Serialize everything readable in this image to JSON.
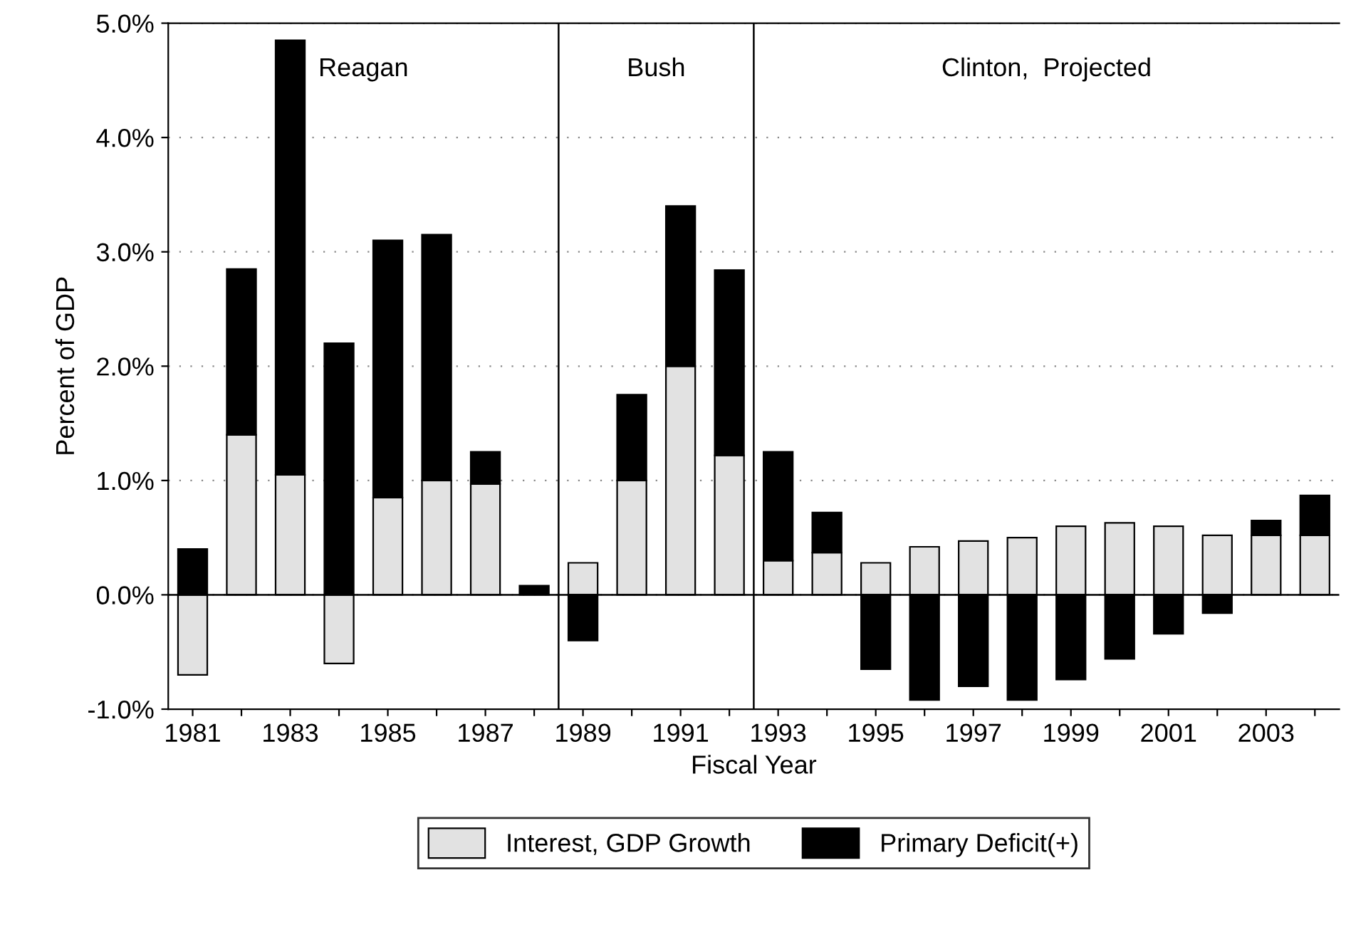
{
  "chart_data": {
    "type": "bar",
    "stacked": true,
    "xlabel": "Fiscal Year",
    "ylabel": "Percent of GDP",
    "x": [
      1981,
      1982,
      1983,
      1984,
      1985,
      1986,
      1987,
      1988,
      1989,
      1990,
      1991,
      1992,
      1993,
      1994,
      1995,
      1996,
      1997,
      1998,
      1999,
      2000,
      2001,
      2002,
      2003,
      2004
    ],
    "series": [
      {
        "name": "Interest, GDP Growth",
        "color": "#e2e2e2",
        "values": [
          -0.7,
          1.4,
          1.05,
          -0.6,
          0.85,
          1.0,
          0.97,
          null,
          0.28,
          1.0,
          2.0,
          1.22,
          0.3,
          0.37,
          0.28,
          0.42,
          0.47,
          0.5,
          0.6,
          0.63,
          0.6,
          0.52,
          0.52,
          0.52
        ]
      },
      {
        "name": "Primary Deficit(+)",
        "color": "#000000",
        "values": [
          0.4,
          1.45,
          3.8,
          2.2,
          2.25,
          2.15,
          0.28,
          0.08,
          -0.4,
          0.75,
          1.4,
          1.62,
          0.95,
          0.35,
          -0.65,
          -0.92,
          -0.8,
          -0.92,
          -0.74,
          -0.56,
          -0.34,
          -0.16,
          0.13,
          0.35
        ]
      }
    ],
    "xlim": [
      1980.5,
      2004.5
    ],
    "xticks": [
      1981,
      {
        "value": 1982,
        "label": null
      },
      1983,
      {
        "value": 1984,
        "label": null
      },
      1985,
      {
        "value": 1986,
        "label": null
      },
      1987,
      {
        "value": 1988,
        "label": null
      },
      1989,
      {
        "value": 1990,
        "label": null
      },
      1991,
      {
        "value": 1992,
        "label": null
      },
      1993,
      {
        "value": 1994,
        "label": null
      },
      1995,
      {
        "value": 1996,
        "label": null
      },
      1997,
      {
        "value": 1998,
        "label": null
      },
      1999,
      {
        "value": 2000,
        "label": null
      },
      2001,
      {
        "value": 2002,
        "label": null
      },
      2003,
      {
        "value": 2004,
        "label": null
      }
    ],
    "ylim": [
      -1.0,
      5.0
    ],
    "yticks": [
      {
        "value": -1,
        "label": "-1.0%"
      },
      {
        "value": 0,
        "label": "0.0%"
      },
      {
        "value": 1,
        "label": "1.0%"
      },
      {
        "value": 2,
        "label": "2.0%"
      },
      {
        "value": 3,
        "label": "3.0%"
      },
      {
        "value": 4,
        "label": "4.0%"
      },
      {
        "value": 5,
        "label": "5.0%"
      }
    ],
    "ref_lines": [
      {
        "axis": "y",
        "value": 0,
        "color": "#000000"
      },
      {
        "axis": "x",
        "value": 1988.5,
        "color": "#000000"
      },
      {
        "axis": "x",
        "value": 1992.5,
        "color": "#000000"
      }
    ],
    "annotations": [
      "Reagan",
      "Bush",
      "Clinton,  Projected"
    ],
    "grid": "y",
    "legend": "bottom"
  }
}
